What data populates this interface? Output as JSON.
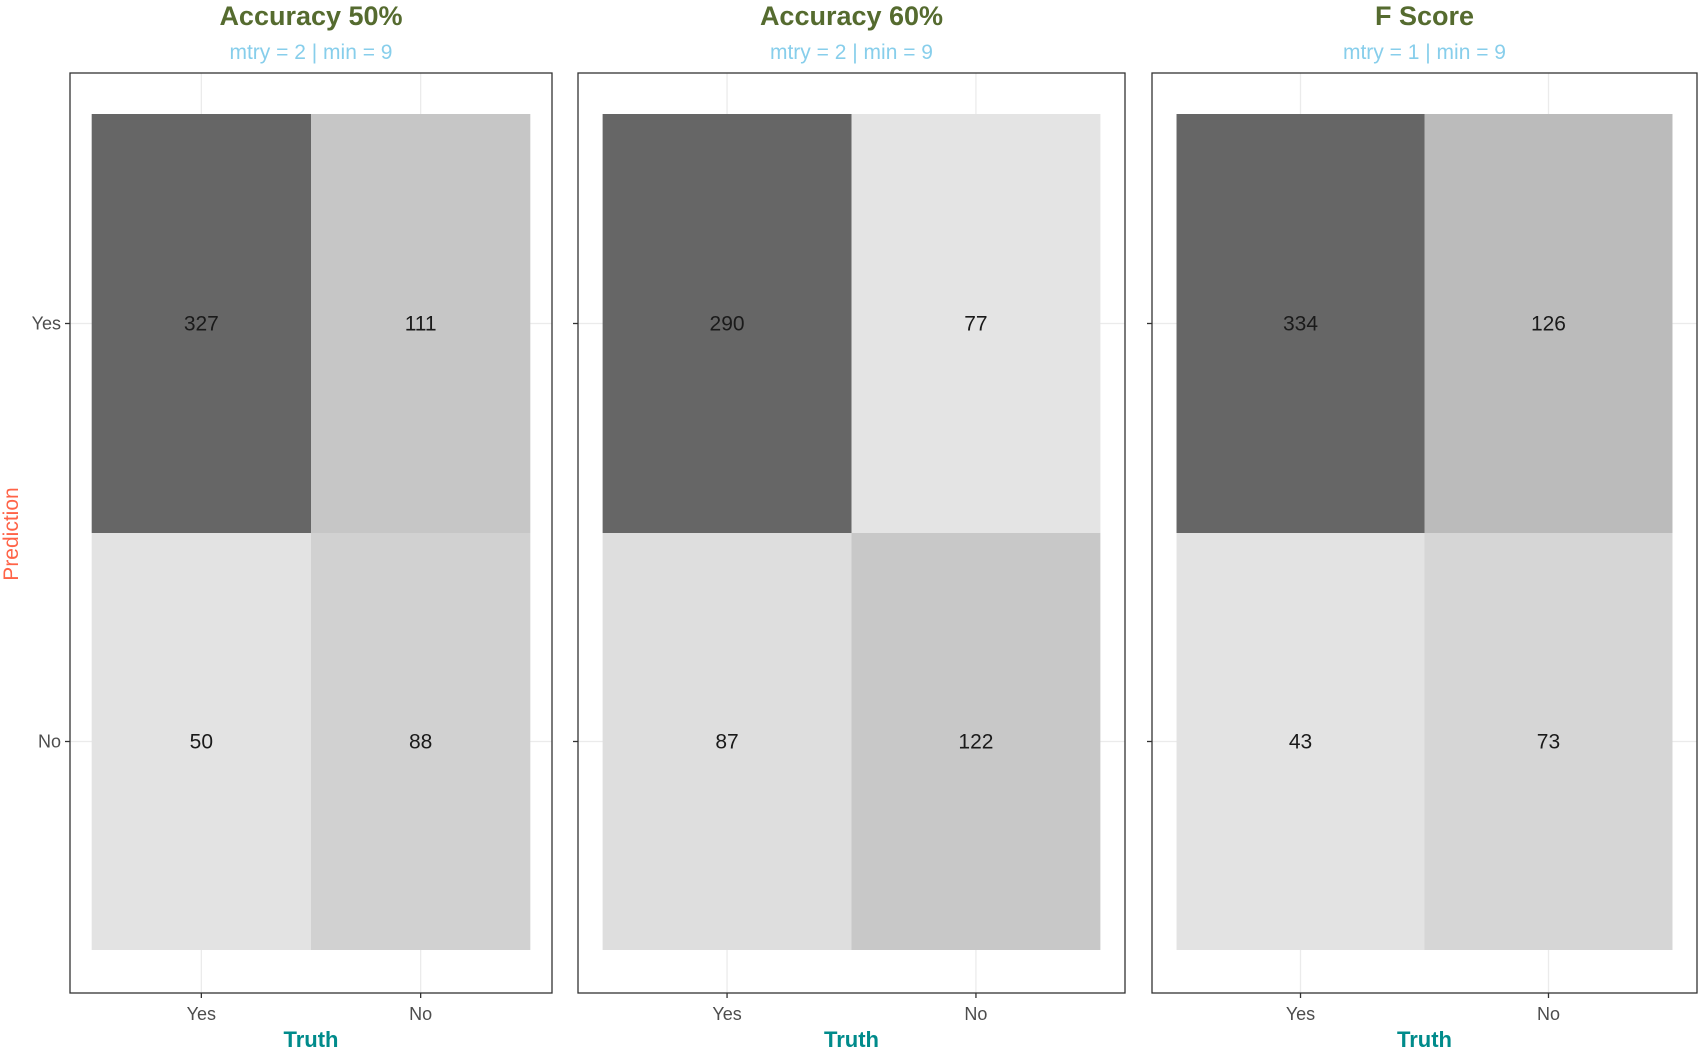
{
  "chart_data": [
    {
      "type": "heatmap",
      "title": "Accuracy 50%",
      "subtitle": "mtry = 2 | min = 9",
      "xlabel": "Truth",
      "ylabel": "Prediction",
      "x_categories": [
        "Yes",
        "No"
      ],
      "y_categories": [
        "Yes",
        "No"
      ],
      "cells": [
        {
          "truth": "Yes",
          "prediction": "Yes",
          "value": 327,
          "fill": "#666666"
        },
        {
          "truth": "No",
          "prediction": "Yes",
          "value": 111,
          "fill": "#c6c6c6"
        },
        {
          "truth": "Yes",
          "prediction": "No",
          "value": 50,
          "fill": "#e3e3e3"
        },
        {
          "truth": "No",
          "prediction": "No",
          "value": 88,
          "fill": "#d1d1d1"
        }
      ]
    },
    {
      "type": "heatmap",
      "title": "Accuracy 60%",
      "subtitle": "mtry = 2 | min = 9",
      "xlabel": "Truth",
      "ylabel": "",
      "x_categories": [
        "Yes",
        "No"
      ],
      "y_categories": [
        "Yes",
        "No"
      ],
      "cells": [
        {
          "truth": "Yes",
          "prediction": "Yes",
          "value": 290,
          "fill": "#666666"
        },
        {
          "truth": "No",
          "prediction": "Yes",
          "value": 77,
          "fill": "#e4e4e4"
        },
        {
          "truth": "Yes",
          "prediction": "No",
          "value": 87,
          "fill": "#dedede"
        },
        {
          "truth": "No",
          "prediction": "No",
          "value": 122,
          "fill": "#c8c8c8"
        }
      ]
    },
    {
      "type": "heatmap",
      "title": "F Score",
      "subtitle": "mtry = 1 | min = 9",
      "xlabel": "Truth",
      "ylabel": "",
      "x_categories": [
        "Yes",
        "No"
      ],
      "y_categories": [
        "Yes",
        "No"
      ],
      "cells": [
        {
          "truth": "Yes",
          "prediction": "Yes",
          "value": 334,
          "fill": "#666666"
        },
        {
          "truth": "No",
          "prediction": "Yes",
          "value": 126,
          "fill": "#bbbbbb"
        },
        {
          "truth": "Yes",
          "prediction": "No",
          "value": 43,
          "fill": "#e3e3e3"
        },
        {
          "truth": "No",
          "prediction": "No",
          "value": 73,
          "fill": "#d6d6d6"
        }
      ]
    }
  ],
  "colors": {
    "title": "#556B2F",
    "subtitle": "#87CEEB",
    "x_axis_title": "#008B8B",
    "y_axis_title": "#FF6347"
  },
  "grid": true,
  "legend": "none"
}
